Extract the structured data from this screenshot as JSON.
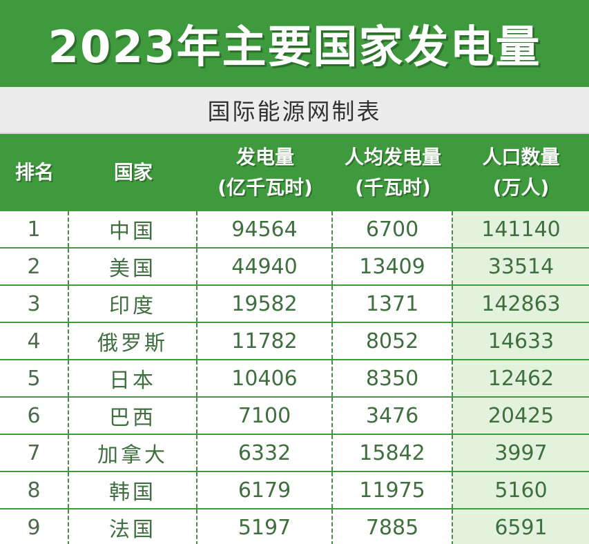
{
  "title": "2023年主要国家发电量",
  "subtitle": "国际能源网制表",
  "headers": [
    {
      "line1": "排名",
      "line2": ""
    },
    {
      "line1": "国家",
      "line2": ""
    },
    {
      "line1": "发电量",
      "line2": "(亿千瓦时)"
    },
    {
      "line1": "人均发电量",
      "line2": "(千瓦时)"
    },
    {
      "line1": "人口数量",
      "line2": "(万人)"
    }
  ],
  "rows": [
    [
      "1",
      "中国",
      "94564",
      "6700",
      "141140"
    ],
    [
      "2",
      "美国",
      "44940",
      "13409",
      "33514"
    ],
    [
      "3",
      "印度",
      "19582",
      "1371",
      "142863"
    ],
    [
      "4",
      "俄罗斯",
      "11782",
      "8052",
      "14633"
    ],
    [
      "5",
      "日本",
      "10406",
      "8350",
      "12462"
    ],
    [
      "6",
      "巴西",
      "7100",
      "3476",
      "20425"
    ],
    [
      "7",
      "加拿大",
      "6332",
      "15842",
      "3997"
    ],
    [
      "8",
      "韩国",
      "6179",
      "11975",
      "5160"
    ],
    [
      "9",
      "法国",
      "5197",
      "7885",
      "6591"
    ]
  ],
  "colors": {
    "header_green": "#3f9a3d",
    "subtitle_gray": "#ececec",
    "highlight_column": "#e3f2dd"
  }
}
